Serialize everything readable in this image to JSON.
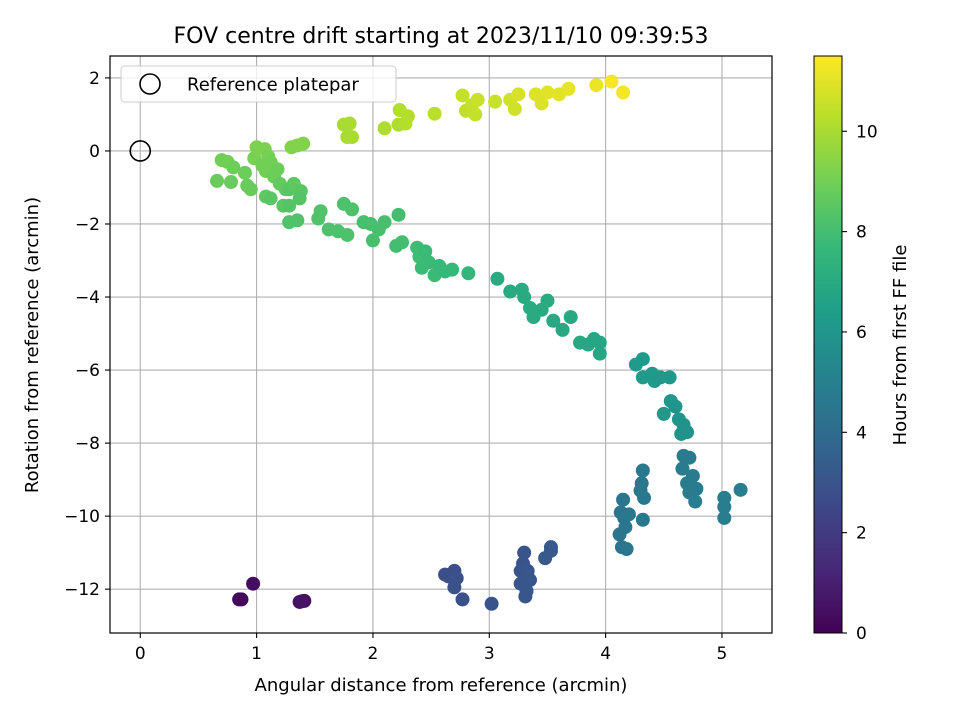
{
  "chart_data": {
    "type": "scatter",
    "title": "FOV centre drift starting at 2023/11/10 09:39:53",
    "xlabel": "Angular distance from reference (arcmin)",
    "ylabel": "Rotation from reference (arcmin)",
    "xlim": [
      -0.26,
      5.43
    ],
    "ylim": [
      -13.2,
      2.6
    ],
    "xticks": [
      0,
      1,
      2,
      3,
      4,
      5
    ],
    "yticks": [
      -12,
      -10,
      -8,
      -6,
      -4,
      -2,
      0,
      2
    ],
    "xtick_labels": [
      "0",
      "1",
      "2",
      "3",
      "4",
      "5"
    ],
    "ytick_labels": [
      "−12",
      "−10",
      "−8",
      "−6",
      "−4",
      "−2",
      "0",
      "2"
    ],
    "grid": true,
    "legend": {
      "placement": "top-left",
      "entries": [
        "Reference platepar"
      ]
    },
    "reference_point": {
      "x": 0,
      "y": 0,
      "label": "Reference platepar"
    },
    "colorbar": {
      "label": "Hours from first FF file",
      "colormap": "viridis",
      "range": [
        0,
        11.5
      ],
      "ticks": [
        0,
        2,
        4,
        6,
        8,
        10
      ],
      "tick_labels": [
        "0",
        "2",
        "4",
        "6",
        "8",
        "10"
      ]
    },
    "colormap_stops": [
      "#440154",
      "#482878",
      "#3e4989",
      "#31688e",
      "#26828e",
      "#1f9e89",
      "#35b779",
      "#6ece58",
      "#b5de2b",
      "#fde725"
    ],
    "points": [
      {
        "x": 0.87,
        "y": -12.28,
        "h": 0.3
      },
      {
        "x": 0.85,
        "y": -12.28,
        "h": 0.3
      },
      {
        "x": 0.97,
        "y": -11.85,
        "h": 0.4
      },
      {
        "x": 1.37,
        "y": -12.35,
        "h": 0.5
      },
      {
        "x": 1.41,
        "y": -12.32,
        "h": 0.5
      },
      {
        "x": 1.39,
        "y": -12.33,
        "h": 0.6
      },
      {
        "x": 2.62,
        "y": -11.6,
        "h": 2.8
      },
      {
        "x": 2.65,
        "y": -11.65,
        "h": 2.8
      },
      {
        "x": 2.7,
        "y": -11.5,
        "h": 2.8
      },
      {
        "x": 2.72,
        "y": -11.7,
        "h": 2.9
      },
      {
        "x": 2.7,
        "y": -11.95,
        "h": 2.9
      },
      {
        "x": 2.77,
        "y": -12.28,
        "h": 2.9
      },
      {
        "x": 3.02,
        "y": -12.4,
        "h": 3.0
      },
      {
        "x": 3.27,
        "y": -11.5,
        "h": 3.0
      },
      {
        "x": 3.3,
        "y": -11.0,
        "h": 3.0
      },
      {
        "x": 3.29,
        "y": -11.3,
        "h": 3.0
      },
      {
        "x": 3.33,
        "y": -11.5,
        "h": 3.1
      },
      {
        "x": 3.35,
        "y": -11.75,
        "h": 3.1
      },
      {
        "x": 3.27,
        "y": -11.85,
        "h": 3.1
      },
      {
        "x": 3.32,
        "y": -12.05,
        "h": 3.1
      },
      {
        "x": 3.31,
        "y": -12.2,
        "h": 3.1
      },
      {
        "x": 3.48,
        "y": -11.15,
        "h": 3.2
      },
      {
        "x": 3.53,
        "y": -10.85,
        "h": 3.2
      },
      {
        "x": 3.53,
        "y": -10.95,
        "h": 3.2
      },
      {
        "x": 4.15,
        "y": -9.55,
        "h": 4.5
      },
      {
        "x": 4.13,
        "y": -9.9,
        "h": 4.5
      },
      {
        "x": 4.16,
        "y": -10.05,
        "h": 4.5
      },
      {
        "x": 4.17,
        "y": -10.3,
        "h": 4.5
      },
      {
        "x": 4.12,
        "y": -10.5,
        "h": 4.5
      },
      {
        "x": 4.14,
        "y": -10.85,
        "h": 4.5
      },
      {
        "x": 4.18,
        "y": -10.9,
        "h": 4.5
      },
      {
        "x": 4.32,
        "y": -8.75,
        "h": 4.6
      },
      {
        "x": 4.31,
        "y": -9.1,
        "h": 4.6
      },
      {
        "x": 4.3,
        "y": -9.3,
        "h": 4.6
      },
      {
        "x": 4.33,
        "y": -9.5,
        "h": 4.6
      },
      {
        "x": 4.32,
        "y": -10.1,
        "h": 4.6
      },
      {
        "x": 4.2,
        "y": -9.95,
        "h": 4.6
      },
      {
        "x": 4.67,
        "y": -8.35,
        "h": 4.8
      },
      {
        "x": 4.72,
        "y": -8.4,
        "h": 4.8
      },
      {
        "x": 4.66,
        "y": -8.7,
        "h": 4.8
      },
      {
        "x": 4.75,
        "y": -8.9,
        "h": 4.8
      },
      {
        "x": 4.7,
        "y": -9.1,
        "h": 4.8
      },
      {
        "x": 4.72,
        "y": -9.35,
        "h": 4.8
      },
      {
        "x": 4.78,
        "y": -9.25,
        "h": 4.8
      },
      {
        "x": 4.77,
        "y": -9.6,
        "h": 4.9
      },
      {
        "x": 5.02,
        "y": -9.5,
        "h": 4.9
      },
      {
        "x": 5.02,
        "y": -9.75,
        "h": 4.9
      },
      {
        "x": 5.02,
        "y": -10.05,
        "h": 4.9
      },
      {
        "x": 5.16,
        "y": -9.28,
        "h": 4.9
      },
      {
        "x": 4.26,
        "y": -5.85,
        "h": 6.2
      },
      {
        "x": 4.32,
        "y": -5.7,
        "h": 6.2
      },
      {
        "x": 4.32,
        "y": -6.2,
        "h": 6.2
      },
      {
        "x": 4.4,
        "y": -6.1,
        "h": 6.2
      },
      {
        "x": 4.42,
        "y": -6.3,
        "h": 6.2
      },
      {
        "x": 4.47,
        "y": -6.2,
        "h": 6.1
      },
      {
        "x": 4.55,
        "y": -6.2,
        "h": 6.1
      },
      {
        "x": 4.5,
        "y": -7.2,
        "h": 6.1
      },
      {
        "x": 4.56,
        "y": -6.85,
        "h": 6.1
      },
      {
        "x": 4.6,
        "y": -7.0,
        "h": 6.0
      },
      {
        "x": 4.63,
        "y": -7.35,
        "h": 6.0
      },
      {
        "x": 4.67,
        "y": -7.5,
        "h": 5.9
      },
      {
        "x": 4.65,
        "y": -7.75,
        "h": 5.9
      },
      {
        "x": 4.7,
        "y": -7.7,
        "h": 5.9
      },
      {
        "x": 3.07,
        "y": -3.5,
        "h": 7.0
      },
      {
        "x": 3.18,
        "y": -3.85,
        "h": 7.0
      },
      {
        "x": 3.28,
        "y": -3.8,
        "h": 7.0
      },
      {
        "x": 3.3,
        "y": -4.0,
        "h": 7.0
      },
      {
        "x": 3.35,
        "y": -4.3,
        "h": 7.0
      },
      {
        "x": 3.38,
        "y": -4.55,
        "h": 7.0
      },
      {
        "x": 3.45,
        "y": -4.35,
        "h": 7.0
      },
      {
        "x": 3.5,
        "y": -4.1,
        "h": 7.0
      },
      {
        "x": 3.55,
        "y": -4.65,
        "h": 6.9
      },
      {
        "x": 3.63,
        "y": -4.9,
        "h": 6.9
      },
      {
        "x": 3.7,
        "y": -4.55,
        "h": 6.9
      },
      {
        "x": 3.78,
        "y": -5.25,
        "h": 6.9
      },
      {
        "x": 3.85,
        "y": -5.3,
        "h": 6.8
      },
      {
        "x": 3.9,
        "y": -5.15,
        "h": 6.8
      },
      {
        "x": 3.95,
        "y": -5.25,
        "h": 6.8
      },
      {
        "x": 3.95,
        "y": -5.55,
        "h": 6.8
      },
      {
        "x": 0.66,
        "y": -0.82,
        "h": 8.8
      },
      {
        "x": 0.7,
        "y": -0.25,
        "h": 9.0
      },
      {
        "x": 0.75,
        "y": -0.3,
        "h": 9.0
      },
      {
        "x": 0.8,
        "y": -0.45,
        "h": 8.9
      },
      {
        "x": 0.78,
        "y": -0.85,
        "h": 8.8
      },
      {
        "x": 0.9,
        "y": -0.6,
        "h": 8.9
      },
      {
        "x": 0.92,
        "y": -0.95,
        "h": 8.8
      },
      {
        "x": 0.95,
        "y": -1.05,
        "h": 8.8
      },
      {
        "x": 0.98,
        "y": -0.2,
        "h": 9.1
      },
      {
        "x": 1.0,
        "y": 0.1,
        "h": 9.2
      },
      {
        "x": 1.05,
        "y": -0.4,
        "h": 9.0
      },
      {
        "x": 1.07,
        "y": 0.05,
        "h": 9.2
      },
      {
        "x": 1.1,
        "y": -0.15,
        "h": 9.1
      },
      {
        "x": 1.12,
        "y": -0.3,
        "h": 9.0
      },
      {
        "x": 1.08,
        "y": -0.55,
        "h": 9.0
      },
      {
        "x": 1.15,
        "y": -0.7,
        "h": 8.9
      },
      {
        "x": 1.18,
        "y": -0.5,
        "h": 8.9
      },
      {
        "x": 1.2,
        "y": -0.9,
        "h": 8.7
      },
      {
        "x": 1.25,
        "y": -1.05,
        "h": 8.6
      },
      {
        "x": 1.08,
        "y": -1.25,
        "h": 8.6
      },
      {
        "x": 1.12,
        "y": -1.3,
        "h": 8.5
      },
      {
        "x": 1.23,
        "y": -1.5,
        "h": 8.5
      },
      {
        "x": 1.28,
        "y": -1.05,
        "h": 8.5
      },
      {
        "x": 1.3,
        "y": 0.1,
        "h": 9.3
      },
      {
        "x": 1.35,
        "y": 0.15,
        "h": 9.3
      },
      {
        "x": 1.4,
        "y": 0.2,
        "h": 9.3
      },
      {
        "x": 1.28,
        "y": -1.5,
        "h": 8.4
      },
      {
        "x": 1.32,
        "y": -0.9,
        "h": 8.6
      },
      {
        "x": 1.38,
        "y": -1.1,
        "h": 8.5
      },
      {
        "x": 1.37,
        "y": -1.3,
        "h": 8.4
      },
      {
        "x": 1.28,
        "y": -1.95,
        "h": 8.3
      },
      {
        "x": 1.35,
        "y": -1.9,
        "h": 8.3
      },
      {
        "x": 1.55,
        "y": -1.65,
        "h": 8.3
      },
      {
        "x": 1.53,
        "y": -1.85,
        "h": 8.3
      },
      {
        "x": 1.62,
        "y": -2.15,
        "h": 8.2
      },
      {
        "x": 1.7,
        "y": -2.2,
        "h": 8.2
      },
      {
        "x": 1.75,
        "y": -1.45,
        "h": 8.2
      },
      {
        "x": 1.78,
        "y": -2.3,
        "h": 8.2
      },
      {
        "x": 1.82,
        "y": -1.6,
        "h": 8.2
      },
      {
        "x": 1.92,
        "y": -1.95,
        "h": 8.1
      },
      {
        "x": 1.98,
        "y": -2.0,
        "h": 8.1
      },
      {
        "x": 2.0,
        "y": -2.45,
        "h": 8.1
      },
      {
        "x": 2.05,
        "y": -2.15,
        "h": 8.1
      },
      {
        "x": 2.1,
        "y": -1.95,
        "h": 8.1
      },
      {
        "x": 2.22,
        "y": -1.75,
        "h": 8.0
      },
      {
        "x": 2.2,
        "y": -2.6,
        "h": 8.0
      },
      {
        "x": 2.25,
        "y": -2.5,
        "h": 8.0
      },
      {
        "x": 2.38,
        "y": -2.65,
        "h": 7.9
      },
      {
        "x": 2.4,
        "y": -2.9,
        "h": 7.9
      },
      {
        "x": 2.45,
        "y": -2.75,
        "h": 7.8
      },
      {
        "x": 2.48,
        "y": -3.05,
        "h": 7.8
      },
      {
        "x": 2.42,
        "y": -3.2,
        "h": 7.8
      },
      {
        "x": 2.53,
        "y": -3.4,
        "h": 7.8
      },
      {
        "x": 2.57,
        "y": -3.15,
        "h": 7.7
      },
      {
        "x": 2.62,
        "y": -3.3,
        "h": 7.7
      },
      {
        "x": 2.68,
        "y": -3.25,
        "h": 7.7
      },
      {
        "x": 2.82,
        "y": -3.35,
        "h": 7.6
      },
      {
        "x": 1.75,
        "y": 0.72,
        "h": 10.0
      },
      {
        "x": 1.78,
        "y": 0.38,
        "h": 10.0
      },
      {
        "x": 1.8,
        "y": 0.75,
        "h": 10.0
      },
      {
        "x": 1.82,
        "y": 0.38,
        "h": 10.0
      },
      {
        "x": 2.1,
        "y": 0.62,
        "h": 10.1
      },
      {
        "x": 2.22,
        "y": 0.72,
        "h": 10.1
      },
      {
        "x": 2.23,
        "y": 1.12,
        "h": 10.2
      },
      {
        "x": 2.28,
        "y": 0.75,
        "h": 10.2
      },
      {
        "x": 2.3,
        "y": 0.95,
        "h": 10.2
      },
      {
        "x": 2.53,
        "y": 1.02,
        "h": 10.3
      },
      {
        "x": 2.77,
        "y": 1.52,
        "h": 10.5
      },
      {
        "x": 2.8,
        "y": 1.1,
        "h": 10.4
      },
      {
        "x": 2.85,
        "y": 1.25,
        "h": 10.5
      },
      {
        "x": 2.88,
        "y": 1.0,
        "h": 10.5
      },
      {
        "x": 2.9,
        "y": 1.4,
        "h": 10.6
      },
      {
        "x": 3.05,
        "y": 1.35,
        "h": 10.6
      },
      {
        "x": 3.18,
        "y": 1.4,
        "h": 10.7
      },
      {
        "x": 3.22,
        "y": 1.15,
        "h": 10.7
      },
      {
        "x": 3.25,
        "y": 1.55,
        "h": 10.8
      },
      {
        "x": 3.4,
        "y": 1.55,
        "h": 10.9
      },
      {
        "x": 3.45,
        "y": 1.3,
        "h": 10.9
      },
      {
        "x": 3.5,
        "y": 1.6,
        "h": 11.0
      },
      {
        "x": 3.6,
        "y": 1.55,
        "h": 11.0
      },
      {
        "x": 3.68,
        "y": 1.7,
        "h": 11.1
      },
      {
        "x": 3.92,
        "y": 1.8,
        "h": 11.2
      },
      {
        "x": 4.05,
        "y": 1.9,
        "h": 11.4
      },
      {
        "x": 4.15,
        "y": 1.6,
        "h": 11.3
      }
    ]
  }
}
